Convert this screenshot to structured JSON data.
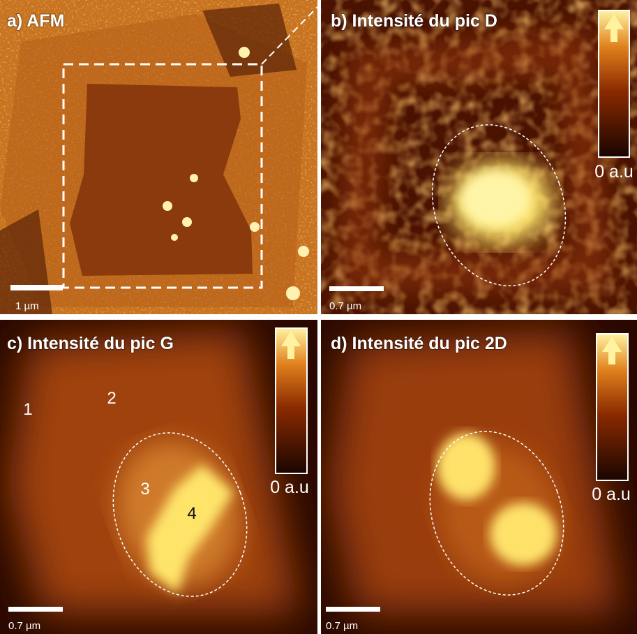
{
  "panels": [
    {
      "title": "a) AFM",
      "scale_bar": "1 µm"
    },
    {
      "title": "b) Intensité du pic D",
      "scale_bar": "0.7 µm",
      "colorbar_label": "0 a.u"
    },
    {
      "title": "c) Intensité du pic G",
      "scale_bar": "0.7 µm",
      "colorbar_label": "0 a.u",
      "point_labels": [
        "1",
        "2",
        "3",
        "4"
      ]
    },
    {
      "title": "d) Intensité du pic 2D",
      "scale_bar": "0.7 µm",
      "colorbar_label": "0 a.u"
    }
  ]
}
